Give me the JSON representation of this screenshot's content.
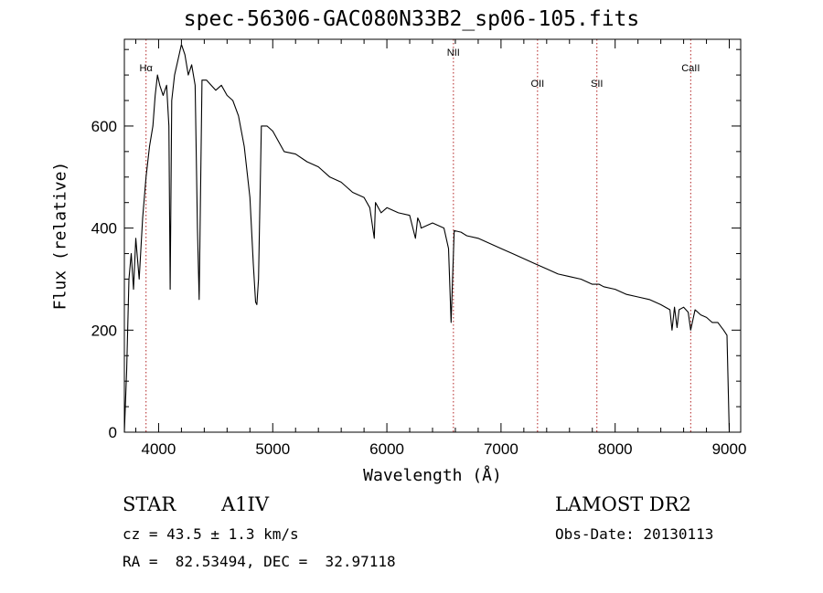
{
  "chart_data": {
    "type": "line",
    "title": "spec-56306-GAC080N33B2_sp06-105.fits",
    "xlabel": "Wavelength (Å)",
    "ylabel": "Flux (relative)",
    "xlim": [
      3700,
      9100
    ],
    "ylim": [
      0,
      770
    ],
    "x_ticks": [
      4000,
      5000,
      6000,
      7000,
      8000,
      9000
    ],
    "y_ticks": [
      0,
      200,
      400,
      600
    ],
    "grid": false,
    "series": [
      {
        "x": [
          3700,
          3720,
          3740,
          3760,
          3780,
          3800,
          3830,
          3860,
          3890,
          3920,
          3950,
          3970,
          3990,
          4010,
          4040,
          4070,
          4090,
          4101,
          4115,
          4140,
          4170,
          4200,
          4230,
          4260,
          4290,
          4320,
          4340,
          4355,
          4380,
          4420,
          4460,
          4500,
          4550,
          4600,
          4650,
          4700,
          4750,
          4800,
          4830,
          4850,
          4861,
          4875,
          4900,
          4950,
          5000,
          5100,
          5200,
          5300,
          5400,
          5500,
          5600,
          5700,
          5800,
          5850,
          5890,
          5900,
          5950,
          6000,
          6100,
          6200,
          6250,
          6270,
          6290,
          6300,
          6400,
          6500,
          6540,
          6563,
          6590,
          6650,
          6700,
          6800,
          6900,
          7000,
          7100,
          7200,
          7300,
          7400,
          7500,
          7600,
          7700,
          7800,
          7860,
          7900,
          8000,
          8100,
          8200,
          8300,
          8400,
          8480,
          8498,
          8520,
          8542,
          8560,
          8600,
          8640,
          8662,
          8700,
          8750,
          8800,
          8850,
          8900,
          8950,
          8980,
          9000
        ],
        "values": [
          0,
          120,
          300,
          350,
          280,
          380,
          300,
          420,
          500,
          560,
          600,
          660,
          700,
          680,
          660,
          680,
          600,
          280,
          650,
          700,
          730,
          760,
          740,
          700,
          720,
          680,
          400,
          260,
          690,
          690,
          680,
          670,
          680,
          660,
          650,
          620,
          560,
          460,
          330,
          255,
          250,
          300,
          600,
          600,
          590,
          550,
          545,
          530,
          520,
          500,
          490,
          470,
          460,
          440,
          380,
          450,
          430,
          440,
          430,
          425,
          380,
          420,
          410,
          400,
          410,
          400,
          360,
          215,
          395,
          392,
          385,
          380,
          370,
          360,
          350,
          340,
          330,
          320,
          310,
          305,
          300,
          290,
          290,
          285,
          280,
          270,
          265,
          260,
          250,
          240,
          200,
          245,
          205,
          240,
          245,
          235,
          200,
          240,
          230,
          225,
          215,
          215,
          200,
          190,
          0
        ]
      }
    ],
    "line_markers": [
      {
        "label": "Hα",
        "x": 3890
      },
      {
        "label": "NII",
        "x": 6583
      },
      {
        "label": "OII",
        "x": 7320
      },
      {
        "label": "SII",
        "x": 7840
      },
      {
        "label": "CaII",
        "x": 8662
      }
    ],
    "colors": {
      "line": "#000000",
      "markers": "#b22222"
    }
  },
  "footer": {
    "object_class": "STAR",
    "subclass": "A1IV",
    "survey": "LAMOST DR2",
    "cz": "cz = 43.5 ± 1.3 km/s",
    "obs_date": "Obs-Date: 20130113",
    "coords": "RA =  82.53494, DEC =  32.97118"
  }
}
